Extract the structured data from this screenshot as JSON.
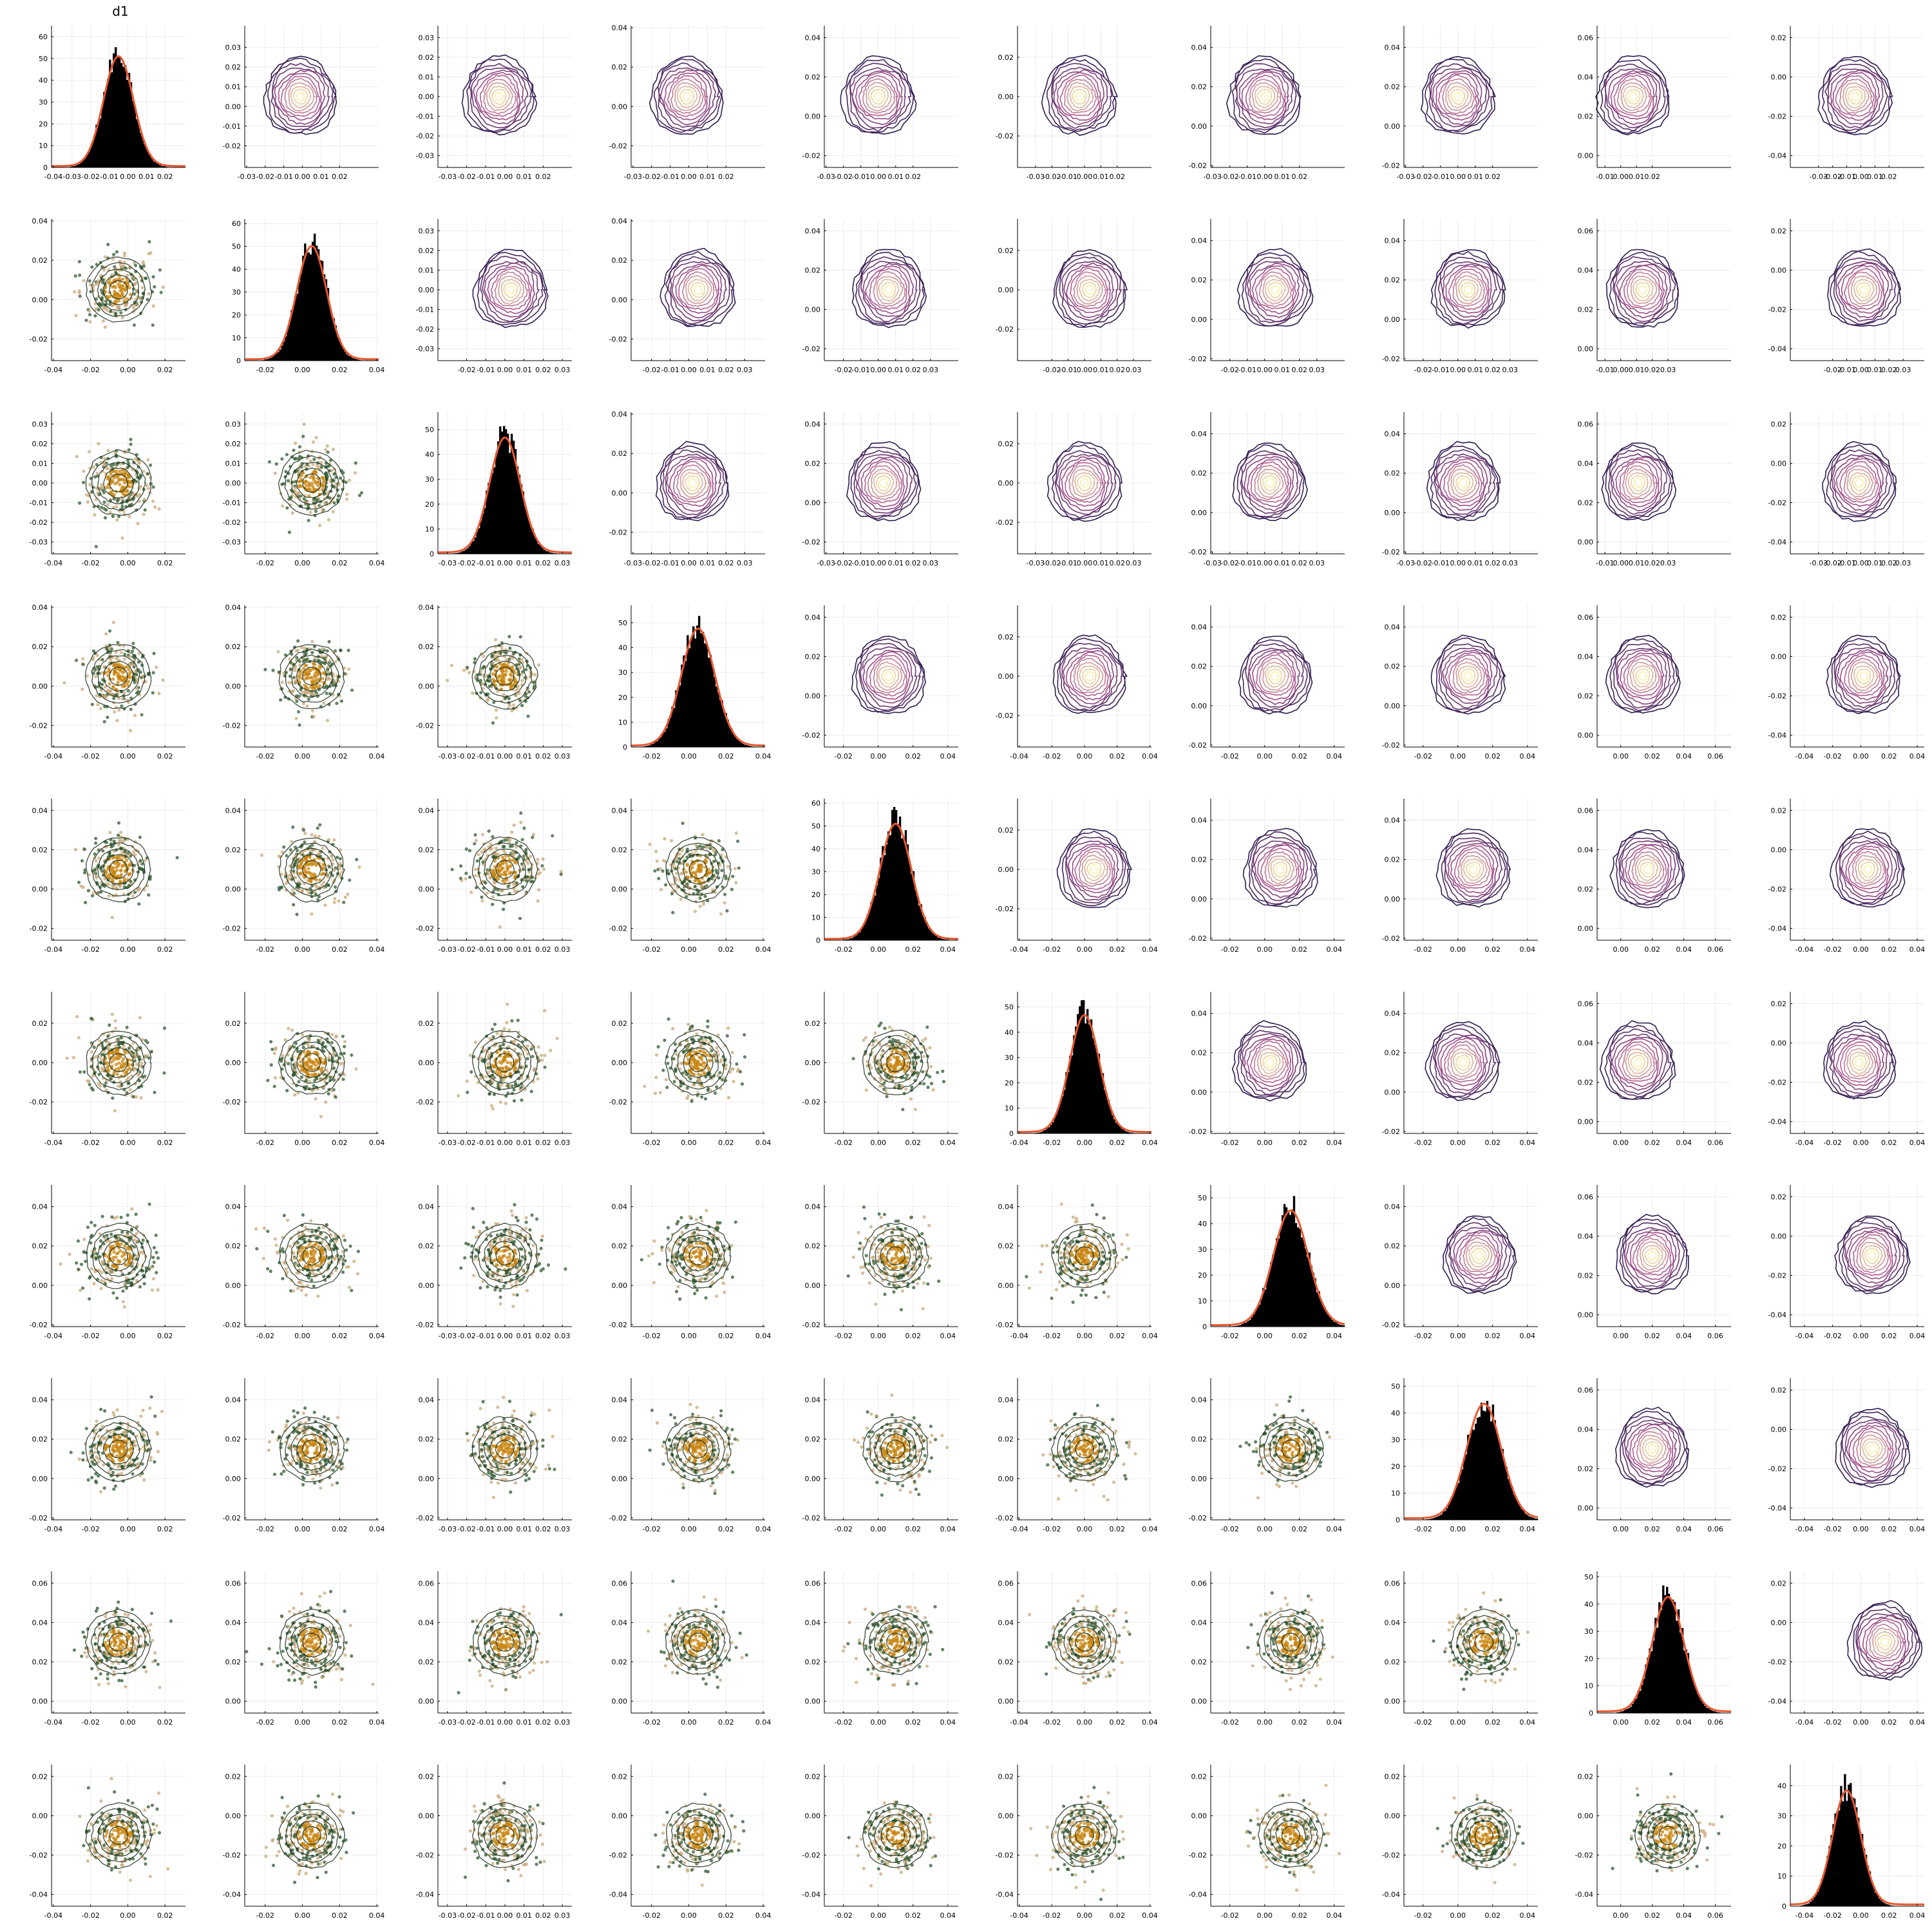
{
  "chart_data": {
    "type": "corner-plot",
    "title": "d1",
    "variables": 10,
    "layout": {
      "diagonal": "histogram with density curve",
      "upper": "2d density contours",
      "lower": "scatter with contours"
    },
    "colors": {
      "histogram": "#000000",
      "density_curve": "#e9562f",
      "scatter_light": "#c9a878",
      "scatter_dark": "#2f5a2f",
      "scatter_core": "#c8840f",
      "contour_scatter": "#1b2e1b",
      "contour_low": "#2b1b4f",
      "contour_mid": "#a8508f",
      "contour_high": "#fbf0a5",
      "axis": "#000000",
      "grid": "#ececec"
    },
    "x_ticks": [
      [
        "-0.04",
        "-0.03",
        "-0.02",
        "-0.01",
        "0.00",
        "0.01",
        "0.02"
      ],
      [
        "-0.02",
        "0.00",
        "0.02",
        "0.04"
      ],
      [
        "-0.03",
        "-0.02",
        "-0.01",
        "0.00",
        "0.01",
        "0.02",
        "0.03"
      ],
      [
        "-0.02",
        "0.00",
        "0.02",
        "0.04"
      ],
      [
        "-0.02",
        "0.00",
        "0.02",
        "0.04"
      ],
      [
        "-0.04",
        "-0.02",
        "0.00",
        "0.02",
        "0.04"
      ],
      [
        "-0.02",
        "0.00",
        "0.02",
        "0.04"
      ],
      [
        "-0.02",
        "0.00",
        "0.02",
        "0.04"
      ],
      [
        "0.00",
        "0.02",
        "0.04",
        "0.06"
      ],
      [
        "-0.04",
        "-0.02",
        "0.00",
        "0.02",
        "0.04"
      ]
    ],
    "x_ticks_upper": [
      [
        "-0.03",
        "-0.02",
        "-0.01",
        "0.00",
        "0.01",
        "0.02"
      ],
      [
        "-0.02",
        "-0.01",
        "0.00",
        "0.01",
        "0.02",
        "0.03"
      ],
      [
        "-0.03",
        "-0.02",
        "-0.01",
        "0.00",
        "0.01",
        "0.02",
        "0.03"
      ]
    ],
    "x_ticks_lower_col0": [
      "-0.04",
      "-0.02",
      "0.00",
      "0.02"
    ],
    "y_ticks": [
      [
        "-0.02",
        "-0.01",
        "0.00",
        "0.01",
        "0.02",
        "0.03"
      ],
      [
        "-0.02",
        "0.00",
        "0.02",
        "0.04"
      ],
      [
        "-0.03",
        "-0.02",
        "-0.01",
        "0.00",
        "0.01",
        "0.02",
        "0.03"
      ],
      [
        "-0.02",
        "0.00",
        "0.02",
        "0.04"
      ],
      [
        "-0.02",
        "0.00",
        "0.02",
        "0.04"
      ],
      [
        "-0.04",
        "-0.02",
        "0.00",
        "0.02"
      ],
      [
        "-0.02",
        "0.00",
        "0.02",
        "0.04"
      ],
      [
        "-0.02",
        "0.00",
        "0.02",
        "0.04"
      ],
      [
        "0.00",
        "0.02",
        "0.04",
        "0.06"
      ],
      [
        "-0.04",
        "-0.02",
        "0.00",
        "0.02"
      ]
    ],
    "y_ticks_upper_col9": [
      "-0.04",
      "-0.02",
      "0.00",
      "0.02"
    ],
    "y_ticks_upper_row0": [
      [
        "-0.02",
        "-0.01",
        "0.00",
        "0.01",
        "0.02",
        "0.03"
      ],
      [
        "-0.03",
        "-0.02",
        "-0.01",
        "0.00",
        "0.01",
        "0.02",
        "0.03"
      ],
      [
        "-0.02",
        "0.00",
        "0.02",
        "0.04"
      ],
      [
        "-0.02",
        "0.00",
        "0.02",
        "0.04"
      ],
      [
        "-0.04",
        "-0.02",
        "0.00",
        "0.02"
      ],
      [
        "-0.02",
        "0.00",
        "0.02",
        "0.04"
      ],
      [
        "-0.02",
        "0.00",
        "0.02",
        "0.04"
      ],
      [
        "0.00",
        "0.02",
        "0.04",
        "0.06"
      ],
      [
        "-0.04",
        "-0.02",
        "0.00",
        "0.02"
      ]
    ],
    "hist_y_ticks": [
      [
        "0",
        "10",
        "20",
        "30",
        "40",
        "50",
        "60"
      ],
      [
        "0",
        "10",
        "20",
        "30",
        "40",
        "50",
        "60"
      ],
      [
        "0",
        "10",
        "20",
        "30",
        "40",
        "50"
      ],
      [
        "0",
        "10",
        "20",
        "30",
        "40",
        "50"
      ],
      [
        "0",
        "10",
        "20",
        "30",
        "40",
        "50",
        "60"
      ],
      [
        "0",
        "10",
        "20",
        "30",
        "40",
        "50"
      ],
      [
        "0",
        "10",
        "20",
        "30",
        "40",
        "50"
      ],
      [
        "0",
        "10",
        "20",
        "30",
        "40",
        "50"
      ],
      [
        "0",
        "10",
        "20",
        "30",
        "40",
        "50"
      ],
      [
        "0",
        "10",
        "20",
        "30",
        "40"
      ]
    ],
    "hist_ymax": [
      65,
      62,
      57,
      57,
      62,
      56,
      55,
      53,
      52,
      47
    ],
    "hist_peak": [
      60,
      59,
      55,
      56,
      60,
      55,
      53,
      51,
      50,
      45
    ],
    "means": [
      -0.005,
      0.005,
      0.0,
      0.005,
      0.01,
      0.0,
      0.015,
      0.015,
      0.03,
      -0.01
    ],
    "sds": [
      0.008,
      0.008,
      0.008,
      0.009,
      0.009,
      0.009,
      0.01,
      0.01,
      0.01,
      0.01
    ],
    "x_ranges": [
      [
        -0.041,
        0.031
      ],
      [
        -0.031,
        0.041
      ],
      [
        -0.035,
        0.035
      ],
      [
        -0.031,
        0.041
      ],
      [
        -0.031,
        0.046
      ],
      [
        -0.041,
        0.041
      ],
      [
        -0.031,
        0.046
      ],
      [
        -0.031,
        0.046
      ],
      [
        -0.015,
        0.07
      ],
      [
        -0.05,
        0.045
      ]
    ]
  }
}
